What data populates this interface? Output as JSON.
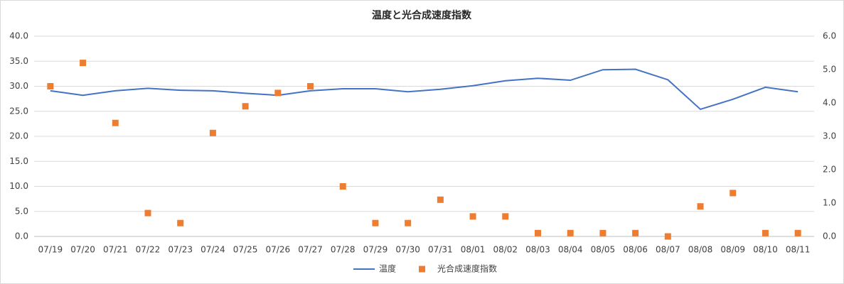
{
  "chart_data": {
    "type": "line_scatter",
    "title": "温度と光合成速度指数",
    "categories": [
      "07/19",
      "07/20",
      "07/21",
      "07/22",
      "07/23",
      "07/24",
      "07/25",
      "07/26",
      "07/27",
      "07/28",
      "07/29",
      "07/30",
      "07/31",
      "08/01",
      "08/02",
      "08/03",
      "08/04",
      "08/05",
      "08/06",
      "08/07",
      "08/08",
      "08/09",
      "08/10",
      "08/11"
    ],
    "series": [
      {
        "name": "温度",
        "type": "line",
        "color": "#4472c4",
        "axis": "y",
        "values": [
          29.1,
          28.2,
          29.1,
          29.6,
          29.2,
          29.1,
          28.6,
          28.2,
          29.1,
          29.5,
          29.5,
          28.9,
          29.4,
          30.1,
          31.1,
          31.6,
          31.2,
          33.3,
          33.4,
          31.3,
          25.4,
          27.4,
          29.8,
          28.9
        ]
      },
      {
        "name": "光合成速度指数",
        "type": "scatter",
        "color": "#ed7d31",
        "axis": "y2",
        "values": [
          4.5,
          5.2,
          3.4,
          0.7,
          0.4,
          3.1,
          3.9,
          4.3,
          4.5,
          1.5,
          0.4,
          0.4,
          1.1,
          0.6,
          0.6,
          0.1,
          0.1,
          0.1,
          0.1,
          0,
          0.9,
          1.3,
          0.1,
          0.1
        ]
      }
    ],
    "ylim": [
      0,
      40
    ],
    "yticks": [
      {
        "value": 0,
        "label": "0.0"
      },
      {
        "value": 5,
        "label": "5.0"
      },
      {
        "value": 10,
        "label": "10.0"
      },
      {
        "value": 15,
        "label": "15.0"
      },
      {
        "value": 20,
        "label": "20.0"
      },
      {
        "value": 25,
        "label": "25.0"
      },
      {
        "value": 30,
        "label": "30.0"
      },
      {
        "value": 35,
        "label": "35.0"
      },
      {
        "value": 40,
        "label": "40.0"
      }
    ],
    "y2lim": [
      0,
      6
    ],
    "y2ticks": [
      {
        "value": 0,
        "label": "0.0"
      },
      {
        "value": 1,
        "label": "1.0"
      },
      {
        "value": 2,
        "label": "2.0"
      },
      {
        "value": 3,
        "label": "3.0"
      },
      {
        "value": 4,
        "label": "4.0"
      },
      {
        "value": 5,
        "label": "5.0"
      },
      {
        "value": 6,
        "label": "6.0"
      }
    ],
    "grid": true,
    "legend": "bottom"
  }
}
